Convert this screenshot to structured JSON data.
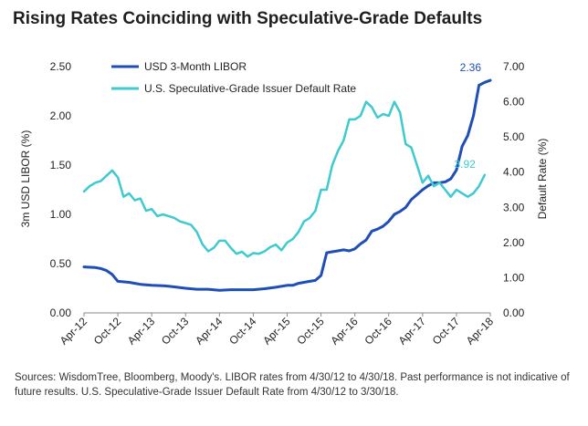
{
  "title": "Rising Rates Coinciding with Speculative-Grade Defaults",
  "footnote": "Sources: WisdomTree, Bloomberg, Moody's. LIBOR rates from 4/30/12 to 4/30/18. Past performance is not indicative of future results. U.S. Speculative-Grade Issuer Default Rate from 4/30/12 to 3/30/18.",
  "chart_data": {
    "type": "line",
    "y_left_label": "3m USD LIBOR (%)",
    "y_right_label": "Default Rate (%)",
    "y_left_range": [
      0,
      2.5
    ],
    "y_right_range": [
      0,
      7
    ],
    "y_left_ticks": [
      "0.00",
      "0.50",
      "1.00",
      "1.50",
      "2.00",
      "2.50"
    ],
    "y_right_ticks": [
      "0.00",
      "1.00",
      "2.00",
      "3.00",
      "4.00",
      "5.00",
      "6.00",
      "7.00"
    ],
    "x_tick_labels": [
      "Apr-12",
      "Oct-12",
      "Apr-13",
      "Oct-13",
      "Apr-14",
      "Oct-14",
      "Apr-15",
      "Oct-15",
      "Apr-16",
      "Oct-16",
      "Apr-17",
      "Oct-17",
      "Apr-18"
    ],
    "x_range_months": [
      0,
      72
    ],
    "legend_placement": "top-left",
    "series": [
      {
        "name": "USD 3-Month LIBOR",
        "axis": "left",
        "color": "#1f4eb4",
        "end_label": "2.36",
        "x_month": [
          0,
          2,
          3,
          4,
          5,
          6,
          8,
          9,
          10,
          12,
          14,
          15,
          18,
          20,
          22,
          24,
          26,
          28,
          30,
          32,
          34,
          36,
          37,
          38,
          40,
          41,
          42,
          43,
          44,
          45,
          46,
          47,
          48,
          49,
          50,
          51,
          52,
          53,
          54,
          55,
          56,
          57,
          58,
          59,
          60,
          61,
          62,
          63,
          64,
          65,
          66,
          67,
          68,
          69,
          70,
          71,
          72
        ],
        "values": [
          0.467,
          0.46,
          0.45,
          0.43,
          0.39,
          0.32,
          0.31,
          0.3,
          0.29,
          0.28,
          0.275,
          0.27,
          0.25,
          0.24,
          0.24,
          0.23,
          0.235,
          0.235,
          0.235,
          0.245,
          0.26,
          0.28,
          0.28,
          0.3,
          0.32,
          0.33,
          0.38,
          0.61,
          0.62,
          0.63,
          0.64,
          0.63,
          0.65,
          0.7,
          0.74,
          0.83,
          0.85,
          0.88,
          0.93,
          1.0,
          1.03,
          1.07,
          1.15,
          1.2,
          1.25,
          1.29,
          1.32,
          1.32,
          1.33,
          1.36,
          1.45,
          1.69,
          1.8,
          2.0,
          2.31,
          2.34,
          2.36
        ]
      },
      {
        "name": "U.S. Speculative-Grade Issuer Default Rate",
        "axis": "right",
        "color": "#3ecad0",
        "end_label": "3.92",
        "x_month": [
          0,
          1,
          2,
          3,
          4,
          5,
          6,
          7,
          8,
          9,
          10,
          11,
          12,
          13,
          14,
          15,
          16,
          17,
          18,
          19,
          20,
          21,
          22,
          23,
          24,
          25,
          26,
          27,
          28,
          29,
          30,
          31,
          32,
          33,
          34,
          35,
          36,
          37,
          38,
          39,
          40,
          41,
          42,
          43,
          44,
          45,
          46,
          47,
          48,
          49,
          50,
          51,
          52,
          53,
          54,
          55,
          56,
          57,
          58,
          59,
          60,
          61,
          62,
          63,
          64,
          65,
          66,
          67,
          68,
          69,
          70,
          71
        ],
        "values": [
          3.45,
          3.6,
          3.7,
          3.75,
          3.9,
          4.05,
          3.85,
          3.3,
          3.4,
          3.2,
          3.25,
          2.9,
          2.95,
          2.75,
          2.8,
          2.75,
          2.7,
          2.6,
          2.55,
          2.5,
          2.3,
          1.95,
          1.75,
          1.85,
          2.05,
          2.05,
          1.85,
          1.68,
          1.74,
          1.6,
          1.7,
          1.68,
          1.75,
          1.87,
          1.94,
          1.78,
          2.0,
          2.1,
          2.3,
          2.6,
          2.7,
          2.9,
          3.5,
          3.5,
          4.2,
          4.6,
          4.9,
          5.5,
          5.5,
          5.6,
          6.0,
          5.85,
          5.55,
          5.65,
          5.6,
          6.0,
          5.7,
          4.8,
          4.7,
          4.2,
          3.7,
          3.9,
          3.6,
          3.7,
          3.5,
          3.3,
          3.5,
          3.4,
          3.3,
          3.4,
          3.6,
          3.92
        ]
      }
    ]
  }
}
